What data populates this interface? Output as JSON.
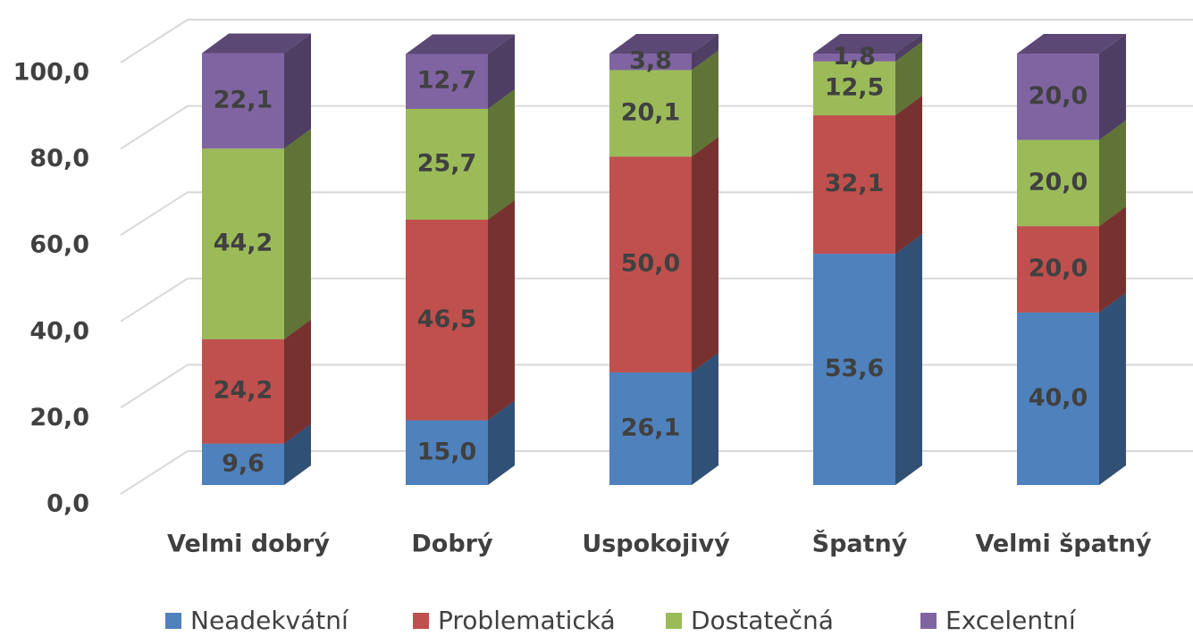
{
  "chart_data": {
    "type": "bar3d_stacked",
    "categories": [
      "Velmi dobrý",
      "Dobrý",
      "Uspokojivý",
      "Špatný",
      "Velmi špatný"
    ],
    "series": [
      {
        "name": "Neadekvátní",
        "color": "#4f81bd",
        "values": [
          9.6,
          15.0,
          26.1,
          53.6,
          40.0
        ],
        "value_labels": [
          "9,6",
          "15,0",
          "26,1",
          "53,6",
          "40,0"
        ]
      },
      {
        "name": "Problematická",
        "color": "#c0504d",
        "values": [
          24.2,
          46.5,
          50.0,
          32.1,
          20.0
        ],
        "value_labels": [
          "24,2",
          "46,5",
          "50,0",
          "32,1",
          "20,0"
        ]
      },
      {
        "name": "Dostatečná",
        "color": "#9bbb59",
        "values": [
          44.2,
          25.7,
          20.1,
          12.5,
          20.0
        ],
        "value_labels": [
          "44,2",
          "25,7",
          "20,1",
          "12,5",
          "20,0"
        ]
      },
      {
        "name": "Excelentní",
        "color": "#8064a2",
        "values": [
          22.1,
          12.7,
          3.8,
          1.8,
          20.0
        ],
        "value_labels": [
          "22,1",
          "12,7",
          "3,8",
          "1,8",
          "20,0"
        ]
      }
    ],
    "ylim": [
      0,
      100
    ],
    "yticks": [
      {
        "value": 0,
        "label": "0,0"
      },
      {
        "value": 20,
        "label": "20,0"
      },
      {
        "value": 40,
        "label": "40,0"
      },
      {
        "value": 60,
        "label": "60,0"
      },
      {
        "value": 80,
        "label": "80,0"
      },
      {
        "value": 100,
        "label": "100,0"
      }
    ],
    "grid": true,
    "legend": "bottom"
  }
}
